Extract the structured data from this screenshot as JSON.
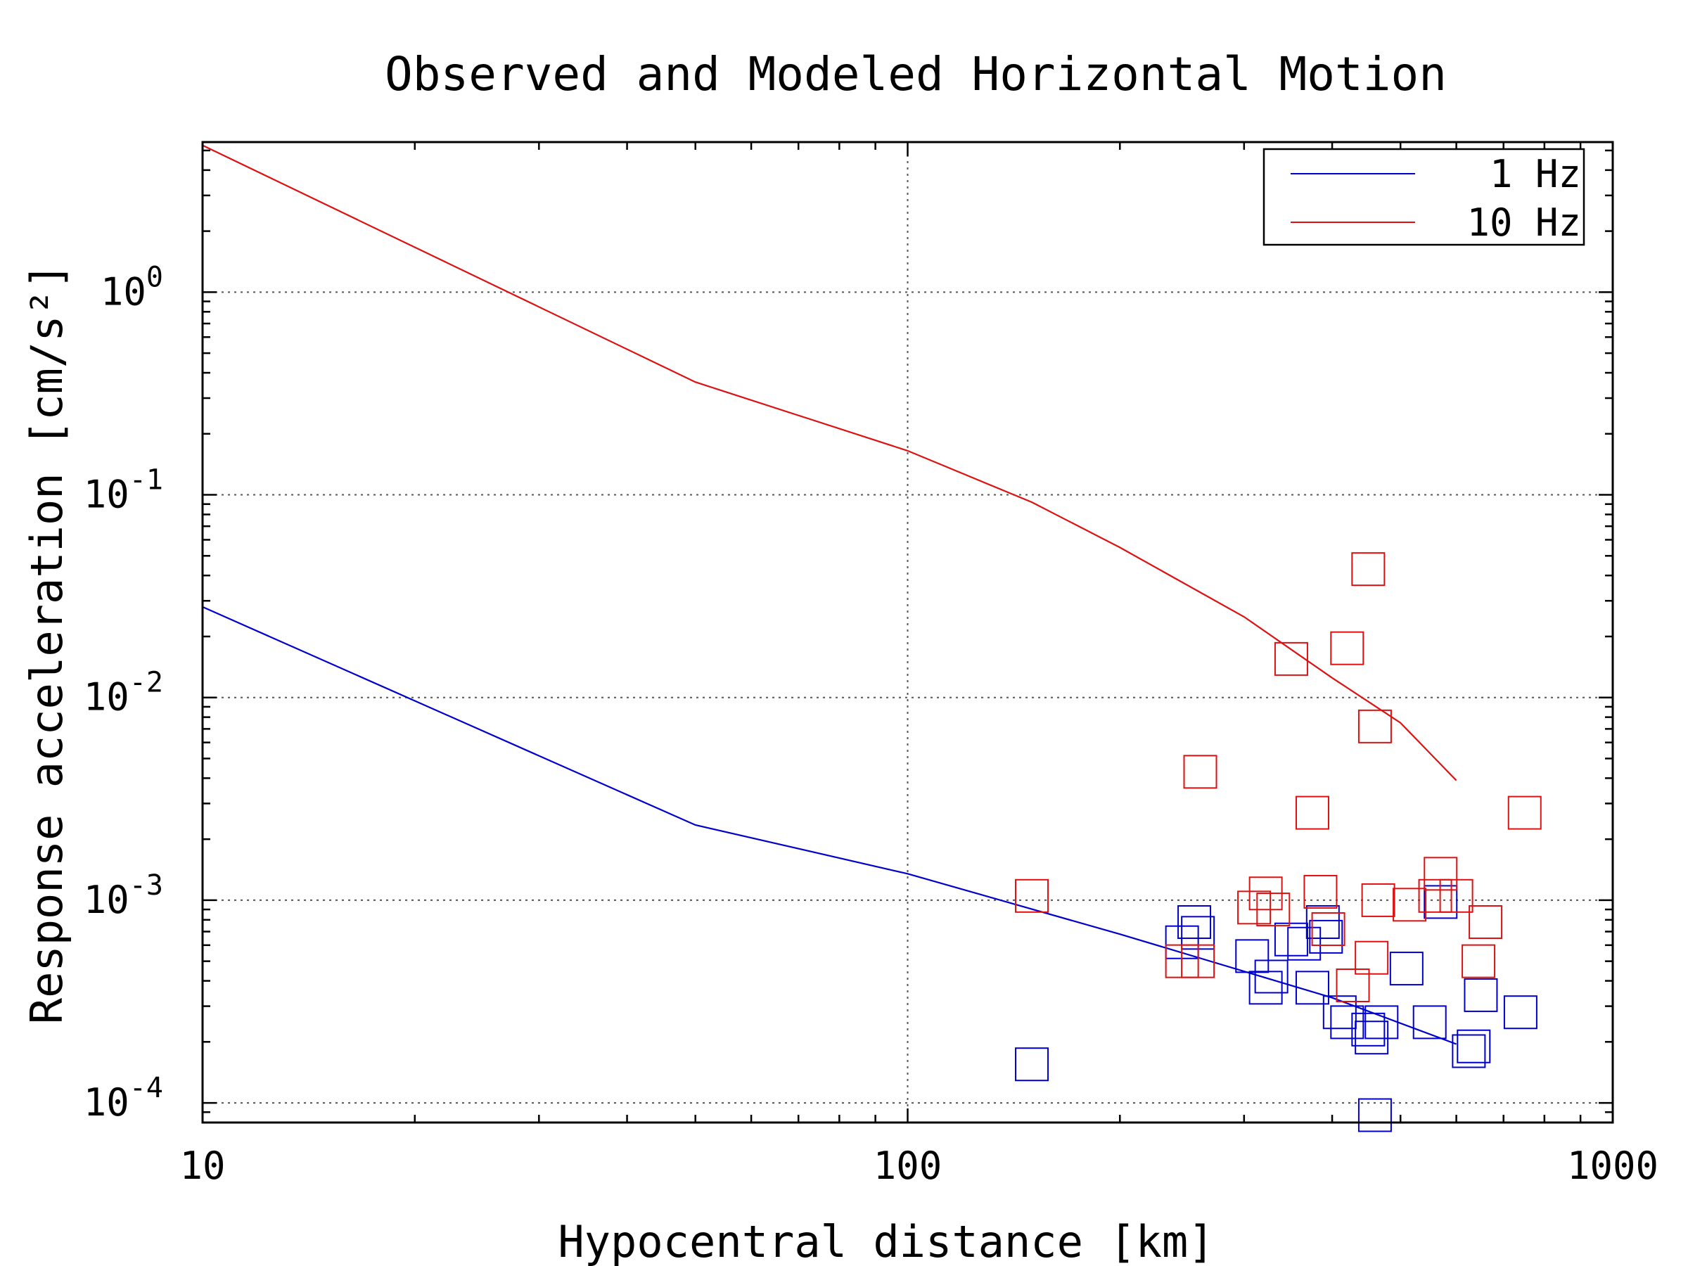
{
  "chart_data": {
    "type": "scatter",
    "title": "Observed and Modeled Horizontal Motion",
    "xlabel": "Hypocentral distance [km]",
    "ylabel": "Response acceleration [cm/s²]",
    "xscale": "log",
    "yscale": "log",
    "xlim": [
      10,
      1000
    ],
    "ylim": [
      8e-05,
      5.5
    ],
    "x_ticks": [
      {
        "value": 10,
        "label": "10"
      },
      {
        "value": 100,
        "label": "100"
      },
      {
        "value": 1000,
        "label": "1000"
      }
    ],
    "y_ticks": [
      {
        "value": 0.0001,
        "base": "10",
        "exp": "-4"
      },
      {
        "value": 0.001,
        "base": "10",
        "exp": "-3"
      },
      {
        "value": 0.01,
        "base": "10",
        "exp": "-2"
      },
      {
        "value": 0.1,
        "base": "10",
        "exp": "-1"
      },
      {
        "value": 1,
        "base": "10",
        "exp": "0"
      }
    ],
    "grid": true,
    "legend_position": "top-right",
    "series": [
      {
        "name": "1 Hz",
        "color": "#0000cc",
        "line": [
          [
            10,
            0.028
          ],
          [
            50,
            0.00235
          ],
          [
            100,
            0.00135
          ],
          [
            200,
            0.00068
          ],
          [
            400,
            0.00033
          ],
          [
            600,
            0.000195
          ]
        ],
        "points": [
          [
            150,
            0.000155
          ],
          [
            245,
            0.00062
          ],
          [
            255,
            0.00078
          ],
          [
            258,
            0.00069
          ],
          [
            308,
            0.00053
          ],
          [
            322,
            0.00037
          ],
          [
            328,
            0.00042
          ],
          [
            350,
            0.00064
          ],
          [
            365,
            0.00061
          ],
          [
            375,
            0.00037
          ],
          [
            388,
            0.00078
          ],
          [
            392,
            0.00066
          ],
          [
            410,
            0.00028
          ],
          [
            420,
            0.00025
          ],
          [
            450,
            0.00023
          ],
          [
            455,
            0.00021
          ],
          [
            460,
            8.7e-05
          ],
          [
            470,
            0.00025
          ],
          [
            510,
            0.00046
          ],
          [
            550,
            0.00025
          ],
          [
            570,
            0.00098
          ],
          [
            625,
            0.00018
          ],
          [
            635,
            0.00019
          ],
          [
            650,
            0.00034
          ],
          [
            740,
            0.00028
          ]
        ]
      },
      {
        "name": "10 Hz",
        "color": "#dd1111",
        "line": [
          [
            10,
            5.3
          ],
          [
            50,
            0.36
          ],
          [
            100,
            0.165
          ],
          [
            150,
            0.092
          ],
          [
            200,
            0.055
          ],
          [
            300,
            0.025
          ],
          [
            400,
            0.0125
          ],
          [
            500,
            0.0075
          ],
          [
            600,
            0.0039
          ]
        ],
        "points": [
          [
            150,
            0.00105
          ],
          [
            245,
            0.0005
          ],
          [
            258,
            0.0005
          ],
          [
            260,
            0.0043
          ],
          [
            310,
            0.00092
          ],
          [
            322,
            0.00108
          ],
          [
            330,
            0.0009
          ],
          [
            350,
            0.0155
          ],
          [
            375,
            0.0027
          ],
          [
            385,
            0.0011
          ],
          [
            395,
            0.00072
          ],
          [
            420,
            0.0175
          ],
          [
            428,
            0.00038
          ],
          [
            450,
            0.043
          ],
          [
            455,
            0.00052
          ],
          [
            460,
            0.0072
          ],
          [
            465,
            0.001
          ],
          [
            515,
            0.00095
          ],
          [
            560,
            0.00105
          ],
          [
            570,
            0.00135
          ],
          [
            600,
            0.00105
          ],
          [
            645,
            0.0005
          ],
          [
            660,
            0.00078
          ],
          [
            750,
            0.0027
          ]
        ]
      }
    ]
  }
}
